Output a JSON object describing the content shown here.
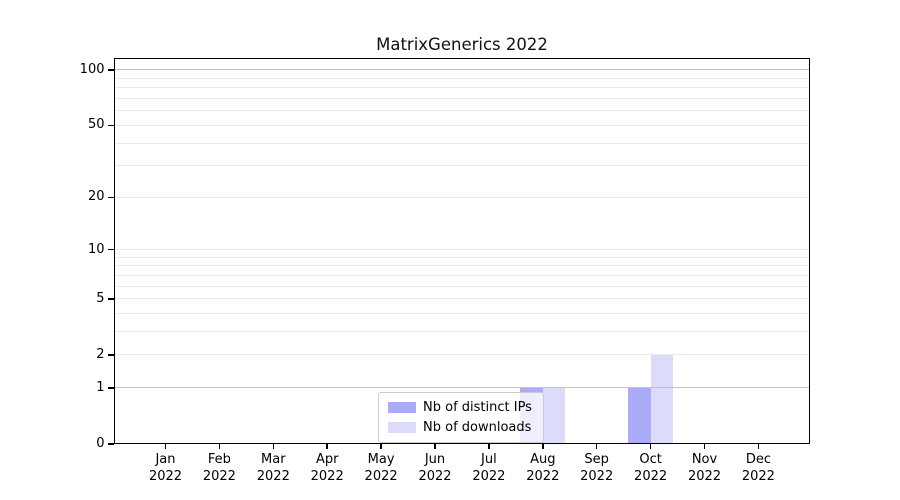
{
  "title": "MatrixGenerics 2022",
  "chart_data": {
    "type": "bar",
    "title": "MatrixGenerics 2022",
    "xlabel": "",
    "ylabel": "",
    "x_tick_labels": [
      {
        "month": "Jan",
        "year": "2022"
      },
      {
        "month": "Feb",
        "year": "2022"
      },
      {
        "month": "Mar",
        "year": "2022"
      },
      {
        "month": "Apr",
        "year": "2022"
      },
      {
        "month": "May",
        "year": "2022"
      },
      {
        "month": "Jun",
        "year": "2022"
      },
      {
        "month": "Jul",
        "year": "2022"
      },
      {
        "month": "Aug",
        "year": "2022"
      },
      {
        "month": "Sep",
        "year": "2022"
      },
      {
        "month": "Oct",
        "year": "2022"
      },
      {
        "month": "Nov",
        "year": "2022"
      },
      {
        "month": "Dec",
        "year": "2022"
      }
    ],
    "series": [
      {
        "name": "Nb of distinct IPs",
        "color": "#ababf8",
        "values": [
          0,
          0,
          0,
          0,
          0,
          0,
          0,
          1,
          0,
          1,
          0,
          0
        ]
      },
      {
        "name": "Nb of downloads",
        "color": "#dcdcfa",
        "values": [
          0,
          0,
          0,
          0,
          0,
          0,
          0,
          1,
          0,
          2,
          0,
          0
        ]
      }
    ],
    "y_ticks": [
      0,
      1,
      2,
      5,
      10,
      20,
      50,
      100
    ],
    "y_minor_gridlines": [
      2,
      3,
      4,
      5,
      6,
      7,
      8,
      9,
      10,
      20,
      30,
      40,
      50,
      60,
      70,
      80,
      90
    ],
    "y_major_gridlines": [
      1,
      100
    ],
    "scale": "log10(1+y)",
    "ylim": [
      0,
      116
    ],
    "grid": true,
    "legend_position": "lower center"
  },
  "colors": {
    "background": "#ffffff",
    "axis": "#000000",
    "grid_minor": "#ececec",
    "grid_major": "#c3c3c3",
    "series_distinct_ips": "#ababf8",
    "series_downloads": "#dcdcfa"
  }
}
